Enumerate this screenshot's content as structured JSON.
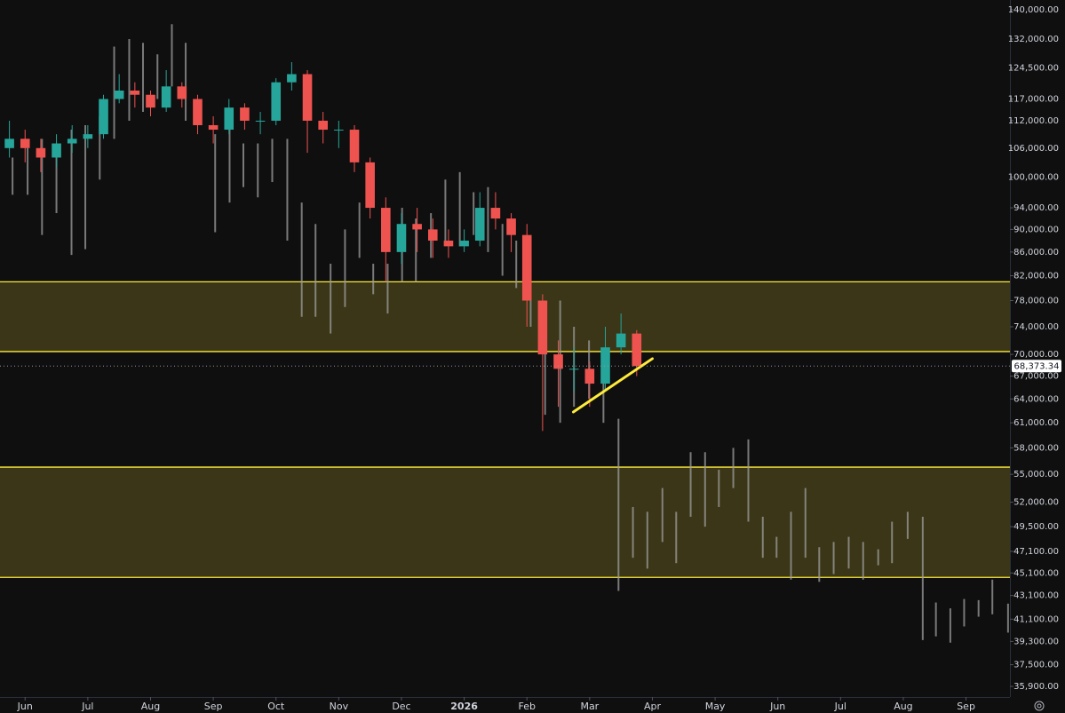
{
  "chart_data": {
    "type": "candlestick",
    "log_scale": true,
    "background": "#0f0f0f",
    "ylim": [
      35140,
      142780
    ],
    "yticks": [
      {
        "value": 140000,
        "label": "140,000.00"
      },
      {
        "value": 132000,
        "label": "132,000.00"
      },
      {
        "value": 124500,
        "label": "124,500.00"
      },
      {
        "value": 117000,
        "label": "117,000.00"
      },
      {
        "value": 112000,
        "label": "112,000.00"
      },
      {
        "value": 106000,
        "label": "106,000.00"
      },
      {
        "value": 100000,
        "label": "100,000.00"
      },
      {
        "value": 94000,
        "label": "94,000.00"
      },
      {
        "value": 90000,
        "label": "90,000.00"
      },
      {
        "value": 86000,
        "label": "86,000.00"
      },
      {
        "value": 82000,
        "label": "82,000.00"
      },
      {
        "value": 78000,
        "label": "78,000.00"
      },
      {
        "value": 74000,
        "label": "74,000.00"
      },
      {
        "value": 70000,
        "label": "70,000.00"
      },
      {
        "value": 67000,
        "label": "67,000.00"
      },
      {
        "value": 64000,
        "label": "64,000.00"
      },
      {
        "value": 61000,
        "label": "61,000.00"
      },
      {
        "value": 58000,
        "label": "58,000.00"
      },
      {
        "value": 55000,
        "label": "55,000.00"
      },
      {
        "value": 52000,
        "label": "52,000.00"
      },
      {
        "value": 49500,
        "label": "49,500.00"
      },
      {
        "value": 47100,
        "label": "47,100.00"
      },
      {
        "value": 45100,
        "label": "45,100.00"
      },
      {
        "value": 43100,
        "label": "43,100.00"
      },
      {
        "value": 41100,
        "label": "41,100.00"
      },
      {
        "value": 39300,
        "label": "39,300.00"
      },
      {
        "value": 37500,
        "label": "37,500.00"
      },
      {
        "value": 35900,
        "label": "35,900.00"
      }
    ],
    "xlim": [
      -0.4,
      15.7
    ],
    "xticks": [
      {
        "value": 0,
        "label": "Jun"
      },
      {
        "value": 1,
        "label": "Jul"
      },
      {
        "value": 2,
        "label": "Aug"
      },
      {
        "value": 3,
        "label": "Sep"
      },
      {
        "value": 4,
        "label": "Oct"
      },
      {
        "value": 5,
        "label": "Nov"
      },
      {
        "value": 6,
        "label": "Dec"
      },
      {
        "value": 7,
        "label": "2026"
      },
      {
        "value": 8,
        "label": "Feb"
      },
      {
        "value": 9,
        "label": "Mar"
      },
      {
        "value": 10,
        "label": "Apr"
      },
      {
        "value": 11,
        "label": "May"
      },
      {
        "value": 12,
        "label": "Jun"
      },
      {
        "value": 13,
        "label": "Jul"
      },
      {
        "value": 14,
        "label": "Aug"
      },
      {
        "value": 15,
        "label": "Sep"
      }
    ],
    "up_color": "#26a69a",
    "down_color": "#ef5350",
    "candles": {
      "x": [
        -0.25,
        0,
        0.25,
        0.5,
        0.75,
        1,
        1.25,
        1.5,
        1.75,
        2,
        2.25,
        2.5,
        2.75,
        3,
        3.25,
        3.5,
        3.75,
        4,
        4.25,
        4.5,
        4.75,
        5,
        5.25,
        5.5,
        5.75,
        6,
        6.25,
        6.5,
        6.75,
        7,
        7.25,
        7.5,
        7.75,
        8,
        8.25,
        8.5,
        8.75,
        9,
        9.25,
        9.5,
        9.75
      ],
      "open": [
        106000,
        108000,
        106000,
        104000,
        107000,
        108000,
        109000,
        117000,
        119000,
        118000,
        115000,
        120000,
        117000,
        111000,
        110000,
        115000,
        112000,
        112000,
        121000,
        123000,
        112000,
        110000,
        110000,
        103000,
        94000,
        86000,
        91000,
        90000,
        88000,
        87000,
        88000,
        94000,
        92000,
        89000,
        78000,
        70000,
        68000,
        68000,
        66000,
        71000,
        73000
      ],
      "high": [
        112000,
        110000,
        108000,
        109000,
        111000,
        111000,
        118000,
        123000,
        121000,
        119000,
        124000,
        121000,
        118000,
        113000,
        117000,
        116000,
        114000,
        122000,
        126000,
        124000,
        114000,
        112000,
        111000,
        104000,
        96000,
        93000,
        94000,
        92000,
        90000,
        90000,
        97000,
        97000,
        93000,
        91000,
        79000,
        72000,
        71000,
        69000,
        74000,
        76000,
        73500
      ],
      "low": [
        104000,
        103000,
        101000,
        102000,
        105000,
        106000,
        108000,
        116000,
        115000,
        113000,
        114000,
        115000,
        109000,
        107000,
        109000,
        110000,
        109000,
        111000,
        119000,
        105000,
        107000,
        106000,
        101000,
        92000,
        81000,
        84000,
        86000,
        85000,
        85000,
        86000,
        87000,
        90000,
        86000,
        74000,
        60000,
        63000,
        65000,
        63000,
        65000,
        70000,
        67000
      ],
      "close": [
        108000,
        106000,
        104000,
        107000,
        108000,
        109000,
        117000,
        119000,
        118000,
        115000,
        120000,
        117000,
        111000,
        110000,
        115000,
        112000,
        112000,
        121000,
        123000,
        112000,
        110000,
        110000,
        103000,
        94000,
        86000,
        91000,
        90000,
        88000,
        87000,
        88000,
        94000,
        92000,
        89000,
        78000,
        70000,
        68000,
        68000,
        66000,
        71000,
        73000,
        68373.34
      ]
    },
    "ghost_bars": {
      "color": "#9e9e9e",
      "x": [
        -0.2,
        0.04,
        0.27,
        0.5,
        0.74,
        0.96,
        1.19,
        1.42,
        1.66,
        1.88,
        2.11,
        2.34,
        2.56,
        3.03,
        3.26,
        3.48,
        3.71,
        3.94,
        4.18,
        4.41,
        4.63,
        4.87,
        5.1,
        5.33,
        5.55,
        5.78,
        6.01,
        6.23,
        6.47,
        6.7,
        6.93,
        7.15,
        7.38,
        7.61,
        7.83,
        8.06,
        8.29,
        8.53,
        8.75,
        8.99,
        9.22,
        9.46,
        9.69,
        9.92,
        10.16,
        10.38,
        10.61,
        10.84,
        11.06,
        11.29,
        11.53,
        11.76,
        11.98,
        12.21,
        12.44,
        12.66,
        12.89,
        13.13,
        13.36,
        13.6,
        13.82,
        14.07,
        14.31,
        14.52,
        14.75,
        14.97,
        15.2,
        15.42,
        15.67
      ],
      "high": [
        104000,
        106000,
        108000,
        106000,
        110000,
        111000,
        113000,
        130000,
        132000,
        131000,
        128000,
        136000,
        131000,
        109000,
        113000,
        107000,
        107000,
        108000,
        108000,
        95000,
        91000,
        84000,
        90000,
        95000,
        84000,
        84000,
        94000,
        92000,
        93000,
        99500,
        101000,
        97000,
        98000,
        91000,
        88000,
        85000,
        78000,
        78000,
        74000,
        72000,
        68000,
        61500,
        51500,
        51000,
        53500,
        51000,
        57500,
        57500,
        55500,
        58000,
        59000,
        50500,
        48500,
        51000,
        53500,
        47500,
        48000,
        48500,
        48000,
        47300,
        50000,
        51000,
        50500,
        42500,
        42000,
        42800,
        42700,
        44500,
        42400
      ],
      "low": [
        96500,
        96500,
        89000,
        93000,
        85500,
        86500,
        99500,
        108000,
        112000,
        114000,
        117000,
        120000,
        112000,
        89500,
        95000,
        98000,
        96000,
        99000,
        88000,
        75500,
        75500,
        73000,
        77000,
        85000,
        79000,
        76000,
        81000,
        81000,
        85000,
        88000,
        87000,
        89000,
        86000,
        82000,
        80000,
        74000,
        62000,
        61000,
        63000,
        64000,
        61000,
        43500,
        46500,
        45500,
        48000,
        46000,
        50500,
        49500,
        51500,
        53500,
        50000,
        46500,
        46500,
        44500,
        46500,
        44300,
        45000,
        45500,
        44500,
        45800,
        46000,
        48300,
        39400,
        39700,
        39200,
        40500,
        41300,
        41500,
        40000
      ]
    },
    "zones": [
      {
        "low": 70400,
        "high": 81000
      },
      {
        "low": 44700,
        "high": 55800
      }
    ],
    "zone_color": "#ffeb3b",
    "trendline": {
      "x": [
        8.74,
        10.0
      ],
      "y": [
        62340,
        69400
      ],
      "color": "#ffeb3b"
    },
    "last_price": {
      "value": 68373.34,
      "label": "68,373.34"
    }
  }
}
